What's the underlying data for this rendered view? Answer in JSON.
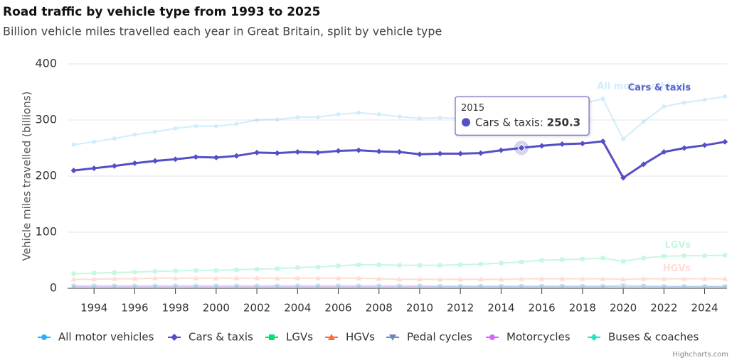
{
  "chart_data": {
    "type": "line",
    "title": "Road traffic by vehicle type from 1993 to 2025",
    "subtitle": "Billion vehicle miles travelled each year in Great Britain, split by vehicle type",
    "y_label": "Vehicle miles travelled (billions)",
    "credits": "Highcharts.com",
    "x": [
      1993,
      1994,
      1995,
      1996,
      1997,
      1998,
      1999,
      2000,
      2001,
      2002,
      2003,
      2004,
      2005,
      2006,
      2007,
      2008,
      2009,
      2010,
      2011,
      2012,
      2013,
      2014,
      2015,
      2016,
      2017,
      2018,
      2019,
      2020,
      2021,
      2022,
      2023,
      2024,
      2025
    ],
    "xlim": [
      1992.7,
      2025.1
    ],
    "xticks": [
      1994,
      1996,
      1998,
      2000,
      2002,
      2004,
      2006,
      2008,
      2010,
      2012,
      2014,
      2016,
      2018,
      2020,
      2022,
      2024
    ],
    "ylim": [
      0,
      400
    ],
    "yticks": [
      0,
      100,
      200,
      300,
      400
    ],
    "grid": true,
    "legend": "bottom",
    "highlight_series": "Cars & taxis",
    "tooltip_x": 2015,
    "series": [
      {
        "name": "All motor vehicles",
        "color": "#2caffe",
        "marker": "circle",
        "end_label": true,
        "values": [
          256,
          261,
          267,
          274,
          279,
          285,
          289,
          289,
          293,
          300,
          301,
          305,
          305,
          310,
          313,
          310,
          306,
          303,
          304,
          303,
          304,
          311,
          317,
          323,
          328,
          329,
          338,
          266,
          297,
          324,
          331,
          336,
          342
        ]
      },
      {
        "name": "Cars & taxis",
        "color": "#544fc5",
        "marker": "diamond",
        "end_label": true,
        "values": [
          210,
          214,
          218,
          223,
          227,
          230,
          234,
          233,
          236,
          242,
          241,
          243,
          242,
          245,
          246,
          244,
          243,
          239,
          240,
          240,
          241,
          246,
          250.3,
          254,
          257,
          258,
          262,
          197,
          221,
          243,
          250,
          255,
          261
        ]
      },
      {
        "name": "LGVs",
        "color": "#00e272",
        "marker": "square",
        "end_label": true,
        "values": [
          26,
          27,
          28,
          29,
          30,
          31,
          32,
          32,
          33,
          34,
          35,
          37,
          38,
          40,
          42,
          42,
          41,
          41,
          41,
          42,
          43,
          45,
          47,
          50,
          51,
          52,
          54,
          48,
          54,
          57,
          58,
          58,
          59
        ]
      },
      {
        "name": "HGVs",
        "color": "#fe6a35",
        "marker": "triangle",
        "end_label": true,
        "values": [
          16,
          16,
          17,
          17,
          18,
          18,
          18,
          18,
          18,
          18,
          18,
          18,
          18,
          18,
          18,
          17,
          16,
          16,
          16,
          16,
          16,
          16,
          17,
          17,
          17,
          17,
          17,
          16,
          17,
          17,
          17,
          17,
          17
        ]
      },
      {
        "name": "Pedal cycles",
        "color": "#6b8abc",
        "marker": "triangle-down",
        "end_label": false,
        "values": [
          3,
          3,
          3,
          3,
          3,
          3,
          3,
          3,
          3,
          3,
          3,
          3,
          3,
          3,
          3,
          3,
          3,
          3,
          3,
          3,
          3,
          3,
          3,
          3,
          3,
          3,
          3,
          5,
          4,
          3,
          3,
          3,
          3
        ]
      },
      {
        "name": "Motorcycles",
        "color": "#d568fb",
        "marker": "circle",
        "end_label": false,
        "values": [
          3,
          3,
          3,
          3,
          3,
          3,
          3,
          3,
          3,
          3,
          3,
          3,
          3,
          3,
          3,
          3,
          3,
          3,
          3,
          3,
          3,
          3,
          3,
          3,
          3,
          3,
          3,
          3,
          3,
          3,
          3,
          3,
          3
        ]
      },
      {
        "name": "Buses & coaches",
        "color": "#2ee0ca",
        "marker": "diamond",
        "end_label": false,
        "values": [
          5,
          5,
          5,
          5,
          5,
          5,
          5,
          5,
          5,
          5,
          5,
          5,
          5,
          5,
          5,
          5,
          5,
          5,
          4,
          4,
          4,
          4,
          4,
          4,
          4,
          4,
          4,
          3,
          3,
          3,
          3,
          3,
          3
        ]
      }
    ]
  }
}
